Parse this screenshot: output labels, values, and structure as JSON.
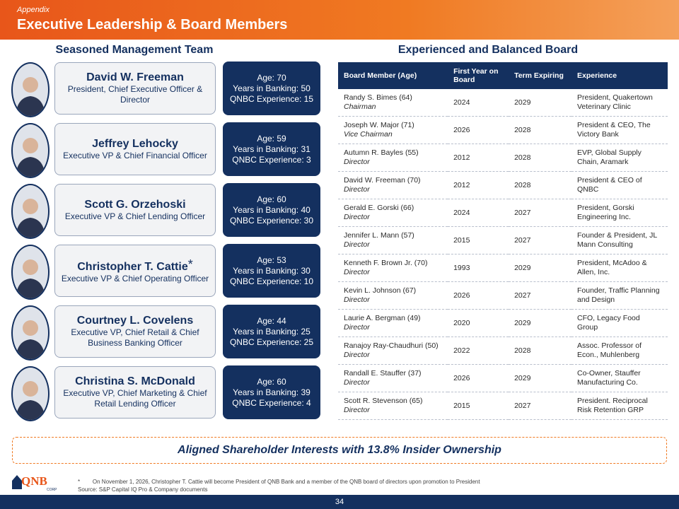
{
  "header": {
    "section": "Appendix",
    "title": "Executive Leadership & Board Members"
  },
  "management": {
    "heading": "Seasoned Management Team",
    "executives": [
      {
        "name": "David W. Freeman",
        "role": "President, Chief Executive Officer & Director",
        "age": "Age: 70",
        "banking": "Years in Banking: 50",
        "qnbc": "QNBC Experience: 15"
      },
      {
        "name": "Jeffrey Lehocky",
        "role": "Executive VP & Chief Financial Officer",
        "age": "Age: 59",
        "banking": "Years in Banking: 31",
        "qnbc": "QNBC Experience: 3"
      },
      {
        "name": "Scott G. Orzehoski",
        "role": "Executive VP & Chief Lending Officer",
        "age": "Age: 60",
        "banking": "Years in Banking: 40",
        "qnbc": "QNBC Experience: 30"
      },
      {
        "name": "Christopher T. Cattie",
        "marker": "*",
        "role": "Executive VP & Chief Operating Officer",
        "age": "Age: 53",
        "banking": "Years in Banking: 30",
        "qnbc": "QNBC Experience: 10"
      },
      {
        "name": "Courtney L. Covelens",
        "role": "Executive VP, Chief Retail & Chief Business Banking Officer",
        "age": "Age: 44",
        "banking": "Years in Banking: 25",
        "qnbc": "QNBC Experience: 25"
      },
      {
        "name": "Christina S. McDonald",
        "role": "Executive VP, Chief Marketing & Chief Retail Lending Officer",
        "age": "Age: 60",
        "banking": "Years in Banking: 39",
        "qnbc": "QNBC Experience: 4"
      }
    ]
  },
  "board": {
    "heading": "Experienced and Balanced Board",
    "columns": [
      "Board Member (Age)",
      "First Year on Board",
      "Term Expiring",
      "Experience"
    ],
    "rows": [
      {
        "name": "Randy S. Bimes (64)",
        "role": "Chairman",
        "first_year": 2024,
        "term": 2029,
        "experience": "President, Quakertown Veterinary Clinic"
      },
      {
        "name": "Joseph W. Major (71)",
        "role": "Vice Chairman",
        "first_year": 2026,
        "term": 2028,
        "experience": "President & CEO, The Victory Bank"
      },
      {
        "name": "Autumn R. Bayles (55)",
        "role": "Director",
        "first_year": 2012,
        "term": 2028,
        "experience": "EVP, Global Supply Chain, Aramark"
      },
      {
        "name": "David W. Freeman (70)",
        "role": "Director",
        "first_year": 2012,
        "term": 2028,
        "experience": "President & CEO of QNBC"
      },
      {
        "name": "Gerald E. Gorski (66)",
        "role": "Director",
        "first_year": 2024,
        "term": 2027,
        "experience": "President, Gorski Engineering Inc."
      },
      {
        "name": "Jennifer L. Mann (57)",
        "role": "Director",
        "first_year": 2015,
        "term": 2027,
        "experience": "Founder & President, JL Mann Consulting"
      },
      {
        "name": "Kenneth F. Brown Jr. (70)",
        "role": "Director",
        "first_year": 1993,
        "term": 2029,
        "experience": "President, McAdoo & Allen, Inc."
      },
      {
        "name": "Kevin L. Johnson (67)",
        "role": "Director",
        "first_year": 2026,
        "term": 2027,
        "experience": "Founder, Traffic Planning and Design"
      },
      {
        "name": "Laurie A. Bergman (49)",
        "role": "Director",
        "first_year": 2020,
        "term": 2029,
        "experience": "CFO, Legacy Food Group"
      },
      {
        "name": "Ranajoy Ray-Chaudhuri (50)",
        "role": "Director",
        "first_year": 2022,
        "term": 2028,
        "experience": "Assoc. Professor of Econ., Muhlenberg"
      },
      {
        "name": "Randall E. Stauffer (37)",
        "role": "Director",
        "first_year": 2026,
        "term": 2029,
        "experience": "Co-Owner, Stauffer Manufacturing Co."
      },
      {
        "name": "Scott R. Stevenson (65)",
        "role": "Director",
        "first_year": 2015,
        "term": 2027,
        "experience": "President. Reciprocal Risk Retention GRP"
      }
    ]
  },
  "banner": "Aligned Shareholder Interests with 13.8% Insider Ownership",
  "footnote": {
    "marker": "*",
    "text": "On November 1, 2026, Christopher T. Cattie will become President of QNB Bank and a member of the QNB board of directors upon promotion to President",
    "source": "Source:  S&P Capital IQ Pro & Company documents"
  },
  "logo": {
    "name": "QNB",
    "sub": "CORP"
  },
  "page_number": 34
}
